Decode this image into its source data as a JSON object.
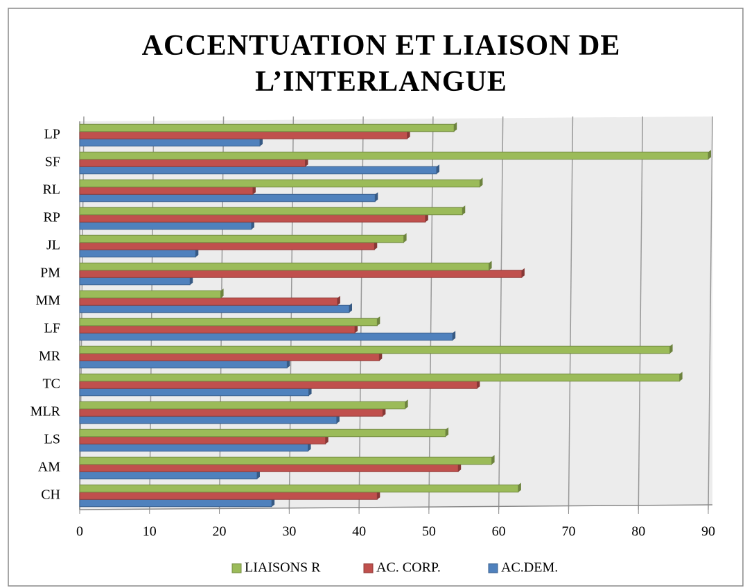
{
  "chart_data": {
    "type": "bar",
    "orientation": "horizontal",
    "title": "ACCENTUATION ET LIAISON DE L’INTERLANGUE",
    "categories": [
      "CH",
      "AM",
      "LS",
      "MLR",
      "TC",
      "MR",
      "LF",
      "MM",
      "PM",
      "JL",
      "RP",
      "RL",
      "SF",
      "LP"
    ],
    "series": [
      {
        "name": "AC.DEM.",
        "color": "#4f81bd",
        "values": [
          27.5,
          25.4,
          32.7,
          36.8,
          32.8,
          29.7,
          53.4,
          38.6,
          15.8,
          16.6,
          24.6,
          42.3,
          51.1,
          25.8
        ]
      },
      {
        "name": "AC. CORP.",
        "color": "#c0504d",
        "values": [
          42.6,
          54.2,
          35.2,
          43.4,
          56.9,
          42.9,
          39.4,
          36.9,
          63.3,
          42.2,
          49.5,
          24.8,
          32.3,
          46.9
        ]
      },
      {
        "name": "LIAISONS R",
        "color": "#9bbb59",
        "values": [
          62.8,
          59.0,
          52.4,
          46.6,
          85.9,
          84.5,
          42.6,
          20.2,
          58.6,
          46.4,
          54.8,
          57.3,
          90.0,
          53.6
        ]
      }
    ],
    "xlim": [
      0,
      90
    ],
    "xticks": [
      0,
      10,
      20,
      30,
      40,
      50,
      60,
      70,
      80,
      90
    ],
    "grid": true,
    "legend": "bottom"
  }
}
